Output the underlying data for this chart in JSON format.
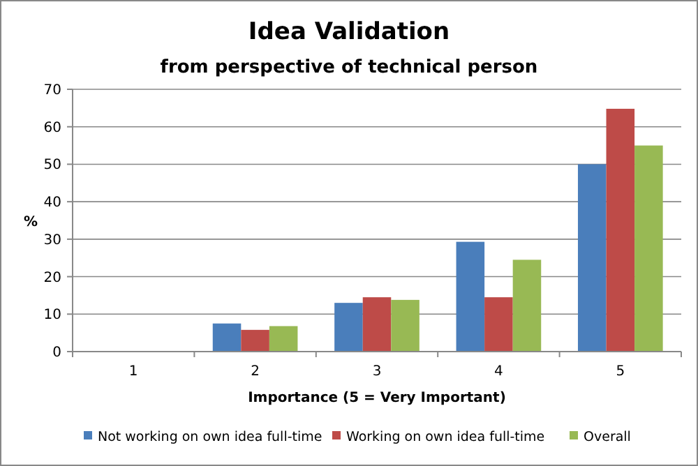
{
  "chart_data": {
    "type": "bar",
    "title": "Idea Validation",
    "subtitle": "from perspective of technical person",
    "xlabel": "Importance (5 = Very Important)",
    "ylabel": "%",
    "categories": [
      "1",
      "2",
      "3",
      "4",
      "5"
    ],
    "series": [
      {
        "name": "Not working on own idea full-time",
        "color": "#4a7ebb",
        "values": [
          0,
          7.5,
          13,
          29.3,
          50
        ]
      },
      {
        "name": "Working on own idea full-time",
        "color": "#be4b48",
        "values": [
          0,
          5.8,
          14.5,
          14.5,
          64.8
        ]
      },
      {
        "name": "Overall",
        "color": "#98b954",
        "values": [
          0,
          6.8,
          13.8,
          24.5,
          55
        ]
      }
    ],
    "ylim": [
      0,
      70
    ],
    "yticks": [
      0,
      10,
      20,
      30,
      40,
      50,
      60,
      70
    ],
    "grid": "y",
    "legend": "bottom"
  }
}
